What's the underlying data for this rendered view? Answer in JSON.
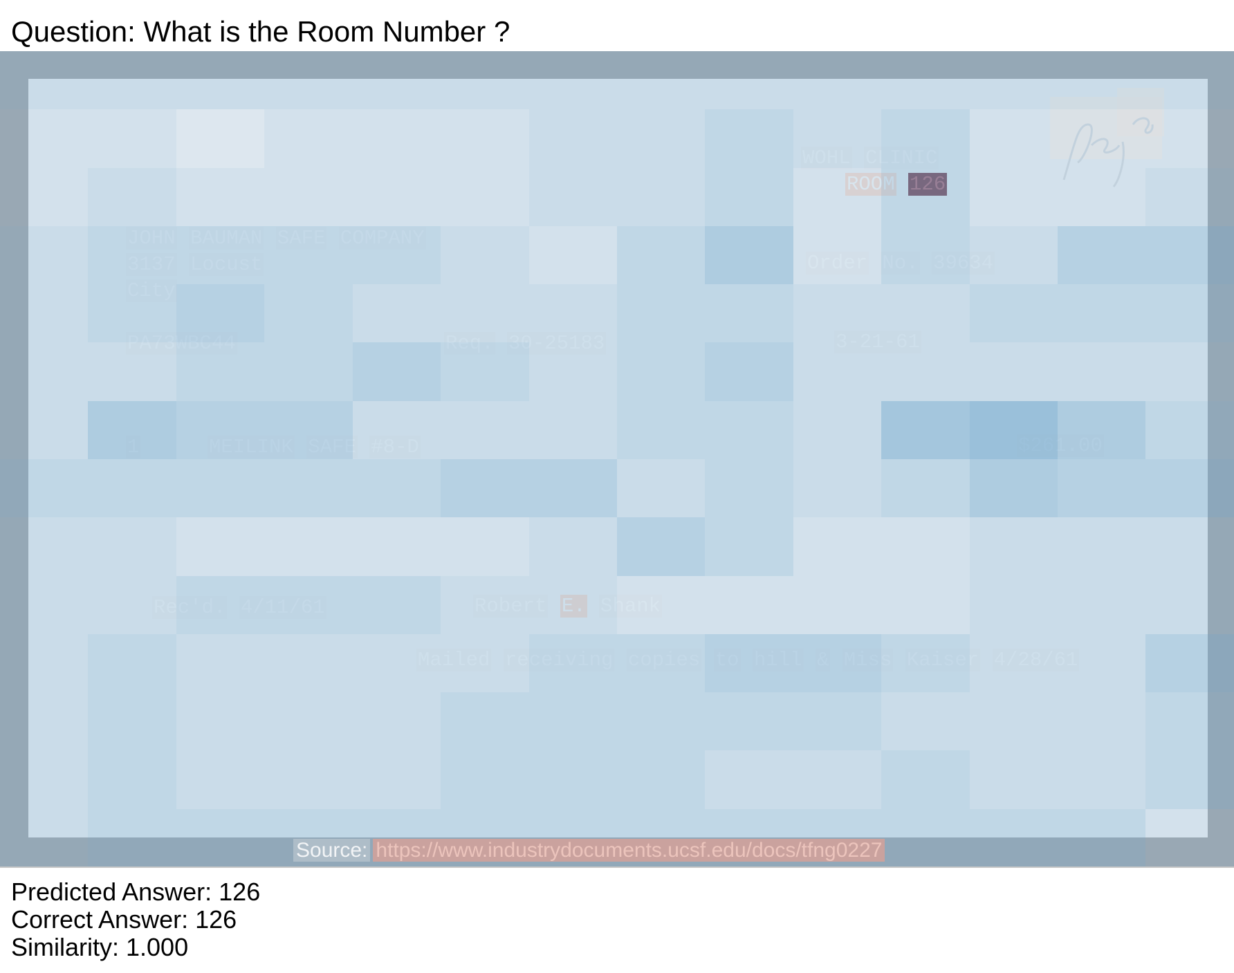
{
  "question": "Question: What is the Room Number ?",
  "document": {
    "clinic": [
      "WOHL",
      "CLINIC"
    ],
    "room_label": "ROOM",
    "room_number": "126",
    "vendor_line1": [
      "JOHN",
      "BAUMAN",
      "SAFE",
      "COMPANY"
    ],
    "vendor_line2": [
      "3137",
      "Locust"
    ],
    "vendor_line3": "City",
    "order_line": [
      "Order",
      "No.",
      "39634"
    ],
    "code": "PA73WBC44",
    "req_label": "Req.",
    "req_number": "30-25183",
    "date": "3-21-61",
    "qty": "1",
    "item": [
      "MEILINK",
      "SAFE",
      "#8-D"
    ],
    "amount": "$261.00",
    "recd_label": "Rec'd.",
    "recd_date": "4/11/61",
    "signer": [
      "Robert",
      "E.",
      "Shank"
    ],
    "note": [
      "Mailed",
      "receiving",
      "copies",
      "to",
      "hill",
      "&",
      "Miss",
      "Kaiser",
      "4/28/61"
    ],
    "handwriting": "Reg 30"
  },
  "source": {
    "label": "Source:",
    "url": "https://www.industrydocuments.ucsf.edu/docs/tfng0227"
  },
  "results": {
    "predicted": "Predicted Answer: 126",
    "correct": "Correct Answer: 126",
    "similarity": "Similarity: 1.000"
  },
  "colors": {
    "heatmap_base": "#6fa6cc",
    "highlight": "#7e4654",
    "scan_border": "#a4a9ae"
  }
}
